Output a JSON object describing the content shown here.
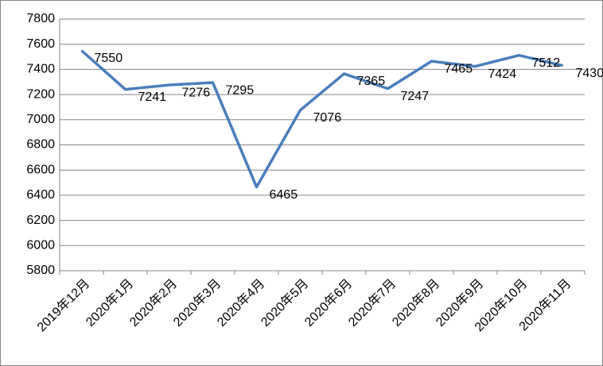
{
  "chart_data": {
    "type": "line",
    "categories": [
      "2019年12月",
      "2020年1月",
      "2020年2月",
      "2020年3月",
      "2020年4月",
      "2020年5月",
      "2020年6月",
      "2020年7月",
      "2020年8月",
      "2020年9月",
      "2020年10月",
      "2020年11月"
    ],
    "series": [
      {
        "color": "#4a7ebb",
        "values": [
          7550,
          7241,
          7276,
          7295,
          6465,
          7076,
          7365,
          7247,
          7465,
          7424,
          7512,
          7430
        ]
      }
    ],
    "ylim": [
      5800,
      7800
    ],
    "yticks": [
      5800,
      6000,
      6200,
      6400,
      6600,
      6800,
      7000,
      7200,
      7400,
      7600,
      7800
    ],
    "grid": true
  }
}
